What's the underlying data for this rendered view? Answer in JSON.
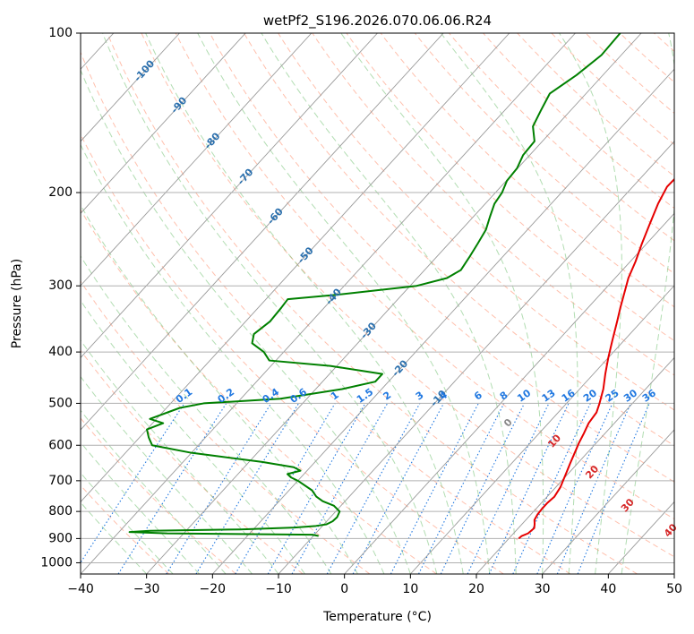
{
  "chart_data": {
    "type": "line",
    "chart_kind": "skew-t log-p diagram",
    "title": "wetPf2_S196.2026.070.06.06.R24",
    "xlabel": "Temperature (°C)",
    "ylabel": "Pressure (hPa)",
    "xlim": [
      -40,
      50
    ],
    "ylim": [
      1050,
      100
    ],
    "x_ticks": [
      -40,
      -30,
      -20,
      -10,
      0,
      10,
      20,
      30,
      40,
      50
    ],
    "x_tick_labels": [
      "−40",
      "−30",
      "−20",
      "−10",
      "0",
      "10",
      "20",
      "30",
      "40",
      "50"
    ],
    "y_ticks": [
      100,
      200,
      300,
      400,
      500,
      600,
      700,
      800,
      900,
      1000
    ],
    "y_tick_labels": [
      "100",
      "200",
      "300",
      "400",
      "500",
      "600",
      "700",
      "800",
      "900",
      "1000"
    ],
    "grid": true,
    "colors": {
      "temperature": "#e60000",
      "dewpoint": "#008000",
      "isotherm": "#9a9a9a",
      "dry_adiabat": "#ff8c69",
      "moist_adiabat": "#66bb66",
      "mixing_ratio": "#1f77e0",
      "isotherm_label": "#2a6fad",
      "dry_adiabat_label": "#d62728",
      "zero_label": "#888888",
      "pressure_grid": "#b0b0b0",
      "lcl_curve": "#d2b48c"
    },
    "isotherm_labels": {
      "values": [
        -100,
        -90,
        -80,
        -70,
        -60,
        -50,
        -40,
        -30,
        -20,
        -10
      ],
      "text": [
        "-100",
        "-90",
        "-80",
        "-70",
        "-60",
        "-50",
        "-40",
        "-30",
        "-20",
        "-10"
      ]
    },
    "zero_isotherm_label": "0",
    "dry_adiabat_labels": {
      "values": [
        10,
        20,
        30,
        40
      ],
      "text": [
        "10",
        "20",
        "30",
        "40"
      ]
    },
    "mixing_ratio_labels": {
      "values": [
        0.1,
        0.2,
        0.4,
        0.6,
        1,
        1.5,
        2,
        3,
        4,
        6,
        8,
        10,
        13,
        16,
        20,
        25,
        30,
        36
      ],
      "text": [
        "0.1",
        "0.2",
        "0.4",
        "0.6",
        "1",
        "1.5",
        "2",
        "3",
        "4",
        "6",
        "8",
        "10",
        "13",
        "16",
        "20",
        "25",
        "30",
        "36"
      ]
    },
    "series": [
      {
        "name": "Temperature",
        "color": "#e60000",
        "points": [
          [
            900,
            21.5
          ],
          [
            890,
            21.6
          ],
          [
            880,
            22.2
          ],
          [
            860,
            22.4
          ],
          [
            845,
            21.9
          ],
          [
            830,
            21.3
          ],
          [
            810,
            21.0
          ],
          [
            790,
            20.9
          ],
          [
            770,
            20.9
          ],
          [
            750,
            21.1
          ],
          [
            720,
            20.7
          ],
          [
            700,
            20.2
          ],
          [
            680,
            19.7
          ],
          [
            650,
            18.9
          ],
          [
            620,
            18.1
          ],
          [
            595,
            17.4
          ],
          [
            570,
            16.8
          ],
          [
            545,
            16.1
          ],
          [
            520,
            15.8
          ],
          [
            500,
            15.0
          ],
          [
            470,
            13.6
          ],
          [
            440,
            11.8
          ],
          [
            410,
            10.0
          ],
          [
            380,
            8.2
          ],
          [
            350,
            6.3
          ],
          [
            330,
            4.9
          ],
          [
            310,
            3.5
          ],
          [
            290,
            2.0
          ],
          [
            270,
            0.8
          ],
          [
            250,
            -0.7
          ],
          [
            230,
            -2.2
          ],
          [
            210,
            -3.8
          ],
          [
            195,
            -4.8
          ],
          [
            185,
            -4.7
          ],
          [
            175,
            -3.5
          ],
          [
            165,
            -1.8
          ],
          [
            155,
            -0.1
          ],
          [
            145,
            1.2
          ],
          [
            135,
            2.8
          ],
          [
            125,
            4.0
          ],
          [
            115,
            5.0
          ],
          [
            105,
            6.1
          ],
          [
            100,
            6.7
          ]
        ]
      },
      {
        "name": "Dewpoint",
        "color": "#008000",
        "points": [
          [
            890,
            -9.2
          ],
          [
            885,
            -10.3
          ],
          [
            880,
            -32.5
          ],
          [
            875,
            -38.4
          ],
          [
            870,
            -35.5
          ],
          [
            865,
            -22.0
          ],
          [
            858,
            -14.0
          ],
          [
            852,
            -11.0
          ],
          [
            846,
            -9.6
          ],
          [
            835,
            -9.1
          ],
          [
            820,
            -9.0
          ],
          [
            800,
            -9.4
          ],
          [
            780,
            -11.1
          ],
          [
            765,
            -13.4
          ],
          [
            750,
            -15.0
          ],
          [
            730,
            -16.5
          ],
          [
            700,
            -20.0
          ],
          [
            690,
            -21.5
          ],
          [
            680,
            -22.5
          ],
          [
            670,
            -21.0
          ],
          [
            660,
            -22.5
          ],
          [
            645,
            -28.0
          ],
          [
            620,
            -40.0
          ],
          [
            600,
            -47.0
          ],
          [
            580,
            -48.6
          ],
          [
            560,
            -50.0
          ],
          [
            545,
            -48.4
          ],
          [
            535,
            -51.0
          ],
          [
            510,
            -48.0
          ],
          [
            500,
            -45.0
          ],
          [
            490,
            -34.0
          ],
          [
            470,
            -26.0
          ],
          [
            455,
            -22.0
          ],
          [
            440,
            -22.0
          ],
          [
            425,
            -31.0
          ],
          [
            415,
            -41.0
          ],
          [
            400,
            -43.0
          ],
          [
            385,
            -46.0
          ],
          [
            370,
            -47.0
          ],
          [
            350,
            -46.3
          ],
          [
            330,
            -46.5
          ],
          [
            318,
            -46.7
          ],
          [
            312,
            -40.0
          ],
          [
            300,
            -29.0
          ],
          [
            290,
            -25.5
          ],
          [
            280,
            -24.5
          ],
          [
            265,
            -25.0
          ],
          [
            250,
            -25.6
          ],
          [
            235,
            -26.3
          ],
          [
            222,
            -27.5
          ],
          [
            210,
            -28.6
          ],
          [
            200,
            -29.0
          ],
          [
            190,
            -29.9
          ],
          [
            180,
            -30.1
          ],
          [
            170,
            -31.0
          ],
          [
            160,
            -31.2
          ],
          [
            150,
            -33.5
          ],
          [
            140,
            -34.5
          ],
          [
            130,
            -35.5
          ],
          [
            120,
            -34.0
          ],
          [
            110,
            -33.0
          ],
          [
            100,
            -33.2
          ]
        ]
      }
    ]
  }
}
